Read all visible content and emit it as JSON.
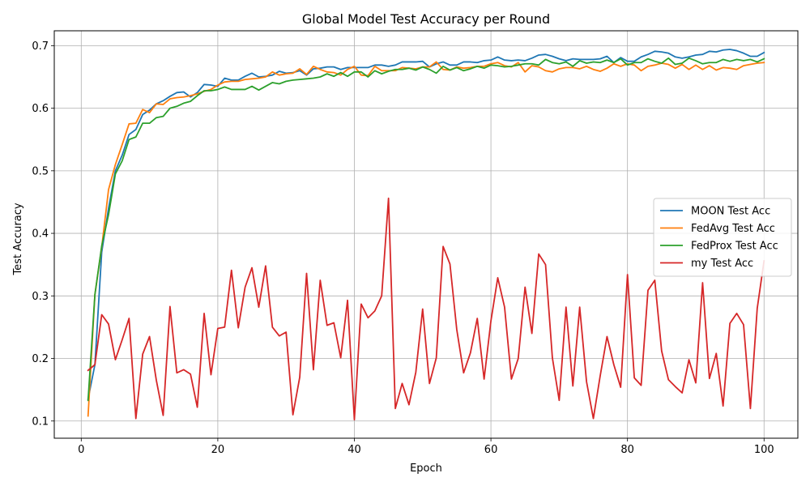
{
  "chart_data": {
    "type": "line",
    "title": "Global Model Test Accuracy per Round",
    "xlabel": "Epoch",
    "ylabel": "Test Accuracy",
    "xlim": [
      -3.95,
      104.95
    ],
    "ylim": [
      0.0725,
      0.7238
    ],
    "xticks": [
      0,
      20,
      40,
      60,
      80,
      100
    ],
    "yticks": [
      0.1,
      0.2,
      0.3,
      0.4,
      0.5,
      0.6,
      0.7
    ],
    "xtick_labels": [
      "0",
      "20",
      "40",
      "60",
      "80",
      "100"
    ],
    "ytick_labels": [
      "0.1",
      "0.2",
      "0.3",
      "0.4",
      "0.5",
      "0.6",
      "0.7"
    ],
    "grid": true,
    "legend_position": "center-right",
    "x": [
      1,
      2,
      3,
      4,
      5,
      6,
      7,
      8,
      9,
      10,
      11,
      12,
      13,
      14,
      15,
      16,
      17,
      18,
      19,
      20,
      21,
      22,
      23,
      24,
      25,
      26,
      27,
      28,
      29,
      30,
      31,
      32,
      33,
      34,
      35,
      36,
      37,
      38,
      39,
      40,
      41,
      42,
      43,
      44,
      45,
      46,
      47,
      48,
      49,
      50,
      51,
      52,
      53,
      54,
      55,
      56,
      57,
      58,
      59,
      60,
      61,
      62,
      63,
      64,
      65,
      66,
      67,
      68,
      69,
      70,
      71,
      72,
      73,
      74,
      75,
      76,
      77,
      78,
      79,
      80,
      81,
      82,
      83,
      84,
      85,
      86,
      87,
      88,
      89,
      90,
      91,
      92,
      93,
      94,
      95,
      96,
      97,
      98,
      99,
      100
    ],
    "series": [
      {
        "name": "MOON Test Acc",
        "color": "#1f77b4",
        "values": [
          0.135,
          0.19,
          0.37,
          0.44,
          0.5,
          0.525,
          0.558,
          0.566,
          0.59,
          0.597,
          0.607,
          0.612,
          0.619,
          0.625,
          0.626,
          0.618,
          0.625,
          0.638,
          0.637,
          0.635,
          0.648,
          0.645,
          0.645,
          0.651,
          0.656,
          0.65,
          0.651,
          0.653,
          0.659,
          0.656,
          0.657,
          0.66,
          0.653,
          0.663,
          0.664,
          0.666,
          0.666,
          0.662,
          0.665,
          0.665,
          0.665,
          0.665,
          0.669,
          0.669,
          0.667,
          0.669,
          0.674,
          0.674,
          0.674,
          0.675,
          0.666,
          0.671,
          0.674,
          0.669,
          0.669,
          0.674,
          0.674,
          0.673,
          0.676,
          0.677,
          0.682,
          0.677,
          0.676,
          0.677,
          0.676,
          0.68,
          0.685,
          0.686,
          0.683,
          0.679,
          0.676,
          0.679,
          0.678,
          0.678,
          0.678,
          0.679,
          0.683,
          0.673,
          0.681,
          0.675,
          0.675,
          0.682,
          0.686,
          0.691,
          0.69,
          0.688,
          0.682,
          0.68,
          0.682,
          0.685,
          0.686,
          0.691,
          0.69,
          0.693,
          0.694,
          0.692,
          0.688,
          0.683,
          0.683,
          0.689
        ]
      },
      {
        "name": "FedAvg Test Acc",
        "color": "#ff7f0e",
        "values": [
          0.108,
          0.302,
          0.378,
          0.47,
          0.51,
          0.542,
          0.575,
          0.576,
          0.598,
          0.593,
          0.607,
          0.606,
          0.615,
          0.617,
          0.618,
          0.62,
          0.623,
          0.627,
          0.63,
          0.637,
          0.642,
          0.643,
          0.643,
          0.646,
          0.647,
          0.648,
          0.65,
          0.658,
          0.653,
          0.655,
          0.656,
          0.663,
          0.654,
          0.667,
          0.662,
          0.658,
          0.657,
          0.653,
          0.662,
          0.667,
          0.653,
          0.652,
          0.667,
          0.66,
          0.66,
          0.66,
          0.665,
          0.664,
          0.663,
          0.666,
          0.666,
          0.674,
          0.662,
          0.661,
          0.666,
          0.664,
          0.665,
          0.667,
          0.667,
          0.671,
          0.673,
          0.668,
          0.666,
          0.673,
          0.658,
          0.668,
          0.666,
          0.66,
          0.658,
          0.663,
          0.665,
          0.665,
          0.663,
          0.667,
          0.662,
          0.659,
          0.664,
          0.671,
          0.667,
          0.671,
          0.669,
          0.66,
          0.667,
          0.669,
          0.672,
          0.67,
          0.664,
          0.67,
          0.662,
          0.669,
          0.662,
          0.668,
          0.661,
          0.665,
          0.664,
          0.662,
          0.668,
          0.67,
          0.672,
          0.673
        ]
      },
      {
        "name": "FedProx Test Acc",
        "color": "#2ca02c",
        "values": [
          0.133,
          0.302,
          0.38,
          0.43,
          0.495,
          0.516,
          0.55,
          0.554,
          0.576,
          0.576,
          0.585,
          0.587,
          0.6,
          0.603,
          0.608,
          0.611,
          0.62,
          0.628,
          0.628,
          0.63,
          0.634,
          0.63,
          0.63,
          0.63,
          0.635,
          0.629,
          0.635,
          0.641,
          0.639,
          0.643,
          0.645,
          0.646,
          0.647,
          0.648,
          0.65,
          0.655,
          0.651,
          0.657,
          0.651,
          0.658,
          0.658,
          0.65,
          0.66,
          0.655,
          0.659,
          0.662,
          0.662,
          0.664,
          0.661,
          0.666,
          0.662,
          0.656,
          0.667,
          0.661,
          0.665,
          0.66,
          0.663,
          0.667,
          0.664,
          0.669,
          0.668,
          0.666,
          0.667,
          0.669,
          0.671,
          0.671,
          0.669,
          0.678,
          0.673,
          0.671,
          0.674,
          0.667,
          0.676,
          0.672,
          0.674,
          0.673,
          0.677,
          0.673,
          0.679,
          0.669,
          0.673,
          0.673,
          0.679,
          0.675,
          0.672,
          0.68,
          0.67,
          0.672,
          0.68,
          0.676,
          0.671,
          0.673,
          0.673,
          0.678,
          0.675,
          0.678,
          0.676,
          0.678,
          0.674,
          0.679
        ]
      },
      {
        "name": "my Test Acc",
        "color": "#d62728",
        "values": [
          0.181,
          0.19,
          0.27,
          0.255,
          0.198,
          0.23,
          0.264,
          0.104,
          0.207,
          0.235,
          0.165,
          0.109,
          0.283,
          0.177,
          0.182,
          0.175,
          0.122,
          0.272,
          0.174,
          0.248,
          0.25,
          0.341,
          0.249,
          0.314,
          0.345,
          0.282,
          0.348,
          0.25,
          0.236,
          0.242,
          0.11,
          0.17,
          0.336,
          0.182,
          0.325,
          0.253,
          0.257,
          0.201,
          0.293,
          0.102,
          0.287,
          0.265,
          0.276,
          0.3,
          0.456,
          0.12,
          0.16,
          0.126,
          0.178,
          0.279,
          0.16,
          0.201,
          0.379,
          0.351,
          0.246,
          0.177,
          0.209,
          0.264,
          0.167,
          0.26,
          0.329,
          0.282,
          0.167,
          0.2,
          0.314,
          0.24,
          0.367,
          0.35,
          0.201,
          0.133,
          0.282,
          0.156,
          0.282,
          0.163,
          0.104,
          0.172,
          0.235,
          0.19,
          0.154,
          0.334,
          0.169,
          0.157,
          0.309,
          0.325,
          0.212,
          0.166,
          0.155,
          0.145,
          0.198,
          0.161,
          0.321,
          0.168,
          0.208,
          0.124,
          0.256,
          0.272,
          0.254,
          0.12,
          0.28,
          0.356
        ]
      }
    ]
  }
}
